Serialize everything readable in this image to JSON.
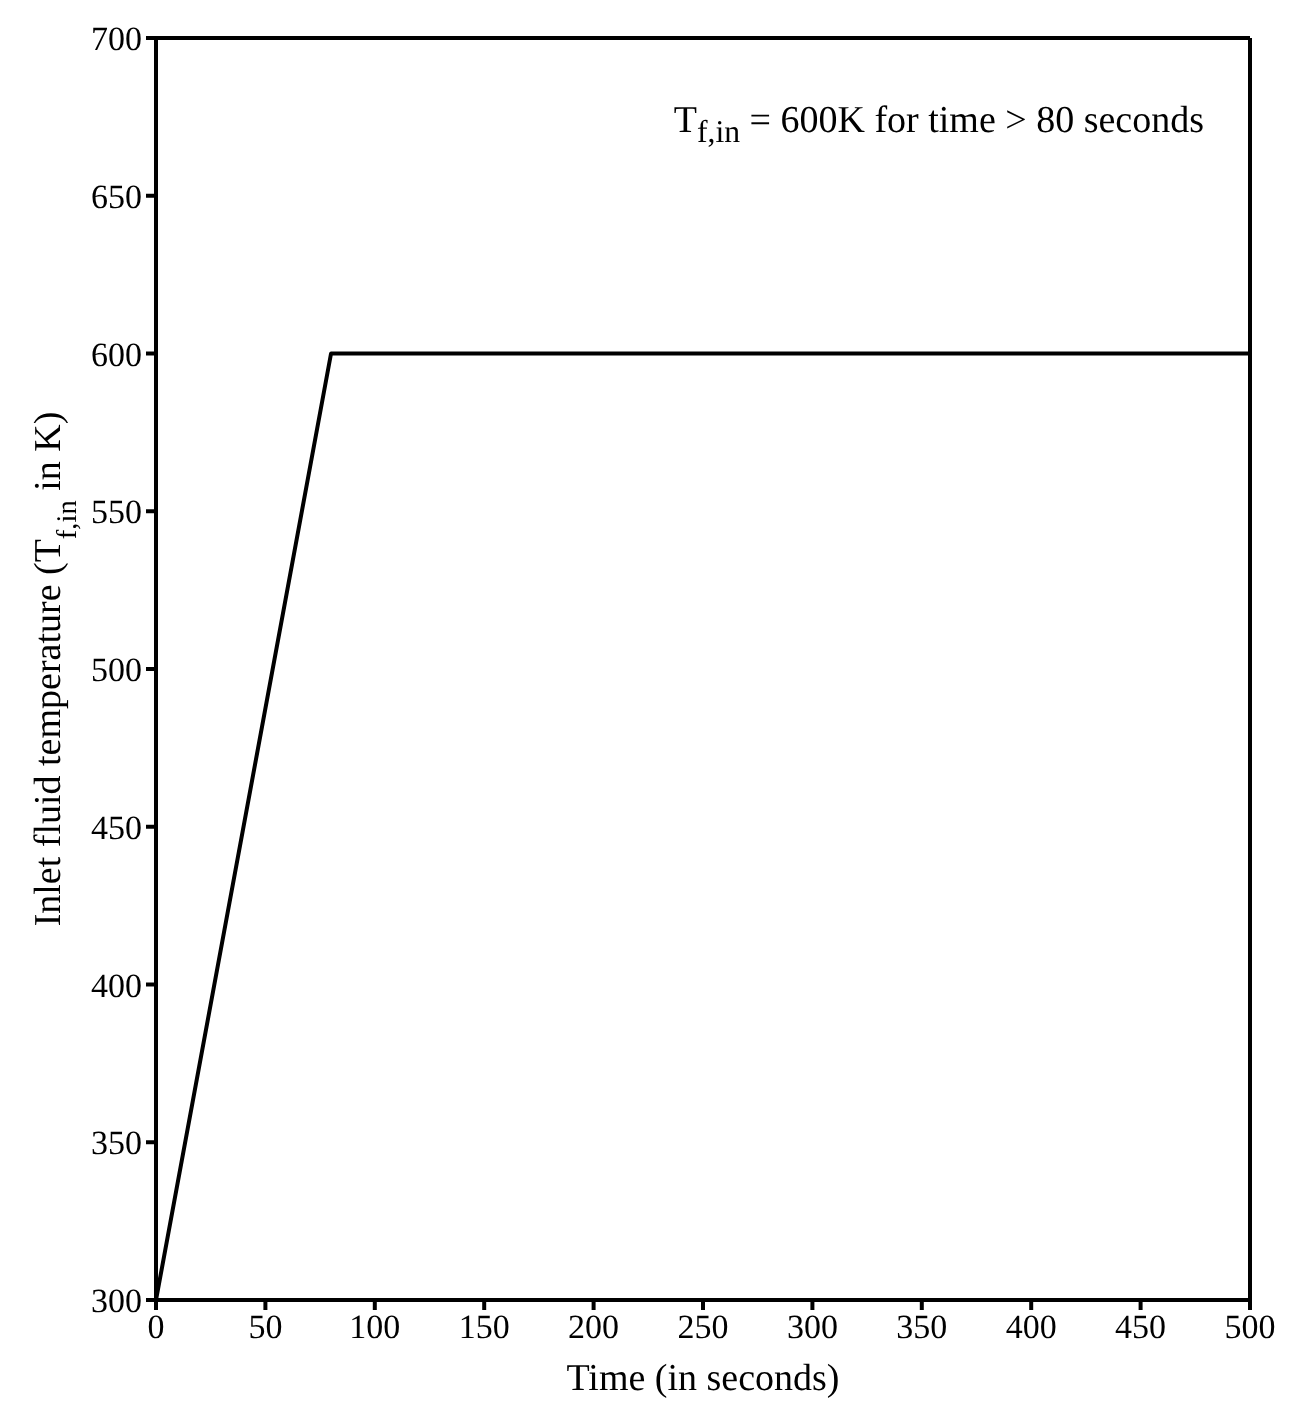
{
  "chart_data": {
    "type": "line",
    "xlabel": "Time (in seconds)",
    "ylabel": "Inlet fluid temperature (T$_{f,in}$ in K)",
    "annotations": [
      "T$_{f,in}$ = 600K for time > 80 seconds"
    ],
    "x": [
      0,
      80,
      500
    ],
    "series": [
      {
        "color": "#000000",
        "values": [
          300,
          600,
          600
        ]
      }
    ],
    "xlim": [
      0,
      500
    ],
    "xticks": [
      0,
      50,
      100,
      150,
      200,
      250,
      300,
      350,
      400,
      450,
      500
    ],
    "ylim": [
      300,
      700
    ],
    "yticks": [
      300,
      350,
      400,
      450,
      500,
      550,
      600,
      650,
      700
    ],
    "marker": "none",
    "line_style": "solid"
  }
}
